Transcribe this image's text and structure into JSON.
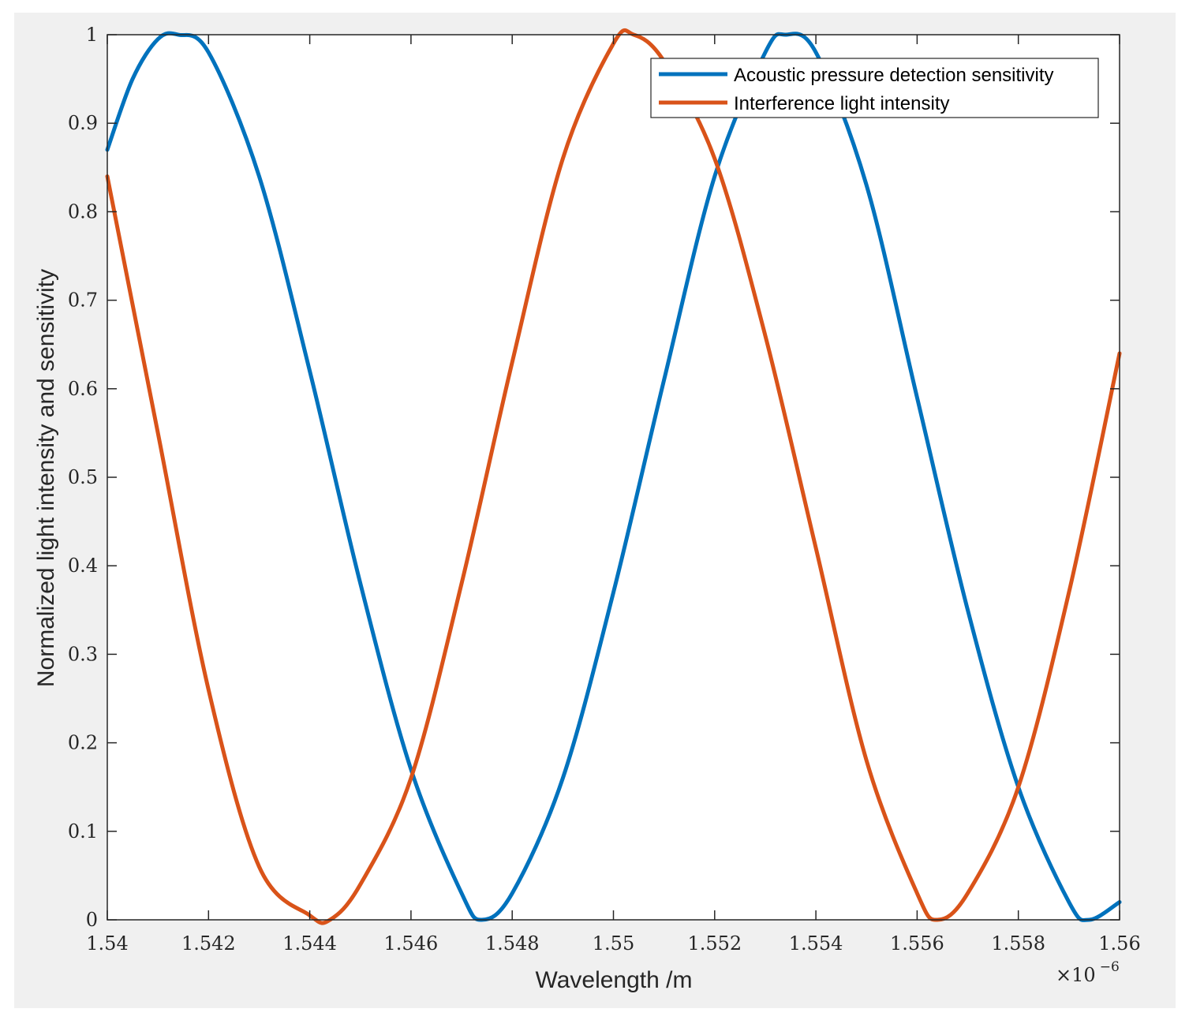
{
  "chart_data": {
    "type": "line",
    "xlabel": "Wavelength /m",
    "ylabel": "Normalized light intensity and sensitivity",
    "xlim": [
      1.54,
      1.56
    ],
    "ylim": [
      0,
      1
    ],
    "x_scale_exponent": {
      "base": "×10",
      "power": "−6"
    },
    "x_ticks": [
      1.54,
      1.542,
      1.544,
      1.546,
      1.548,
      1.55,
      1.552,
      1.554,
      1.556,
      1.558,
      1.56
    ],
    "x_tick_labels": [
      "1.54",
      "1.542",
      "1.544",
      "1.546",
      "1.548",
      "1.55",
      "1.552",
      "1.554",
      "1.556",
      "1.558",
      "1.56"
    ],
    "y_ticks": [
      0,
      0.1,
      0.2,
      0.3,
      0.4,
      0.5,
      0.6,
      0.7,
      0.8,
      0.9,
      1
    ],
    "y_tick_labels": [
      "0",
      "0.1",
      "0.2",
      "0.3",
      "0.4",
      "0.5",
      "0.6",
      "0.7",
      "0.8",
      "0.9",
      "1"
    ],
    "grid": false,
    "legend_position": "top-right",
    "series": [
      {
        "name": "Acoustic pressure detection sensitivity",
        "color": "#0072BD",
        "x": [
          1.54,
          1.5405,
          1.541,
          1.5414,
          1.542,
          1.543,
          1.544,
          1.545,
          1.546,
          1.547,
          1.5474,
          1.548,
          1.549,
          1.55,
          1.551,
          1.552,
          1.553,
          1.5534,
          1.554,
          1.555,
          1.556,
          1.557,
          1.558,
          1.559,
          1.5594,
          1.56
        ],
        "y": [
          0.87,
          0.95,
          0.995,
          1.0,
          0.98,
          0.84,
          0.62,
          0.38,
          0.17,
          0.03,
          0.0,
          0.03,
          0.16,
          0.37,
          0.61,
          0.84,
          0.98,
          1.0,
          0.98,
          0.83,
          0.59,
          0.35,
          0.15,
          0.02,
          0.0,
          0.02
        ]
      },
      {
        "name": "Interference light intensity",
        "color": "#D95319",
        "x": [
          1.54,
          1.541,
          1.542,
          1.543,
          1.544,
          1.5444,
          1.545,
          1.546,
          1.547,
          1.548,
          1.549,
          1.55,
          1.5504,
          1.551,
          1.552,
          1.553,
          1.554,
          1.555,
          1.556,
          1.5564,
          1.557,
          1.558,
          1.559,
          1.56
        ],
        "y": [
          0.84,
          0.55,
          0.26,
          0.06,
          0.005,
          0.0,
          0.04,
          0.16,
          0.38,
          0.63,
          0.86,
          0.99,
          1.0,
          0.97,
          0.86,
          0.66,
          0.42,
          0.18,
          0.03,
          0.0,
          0.03,
          0.15,
          0.37,
          0.64
        ]
      }
    ]
  }
}
